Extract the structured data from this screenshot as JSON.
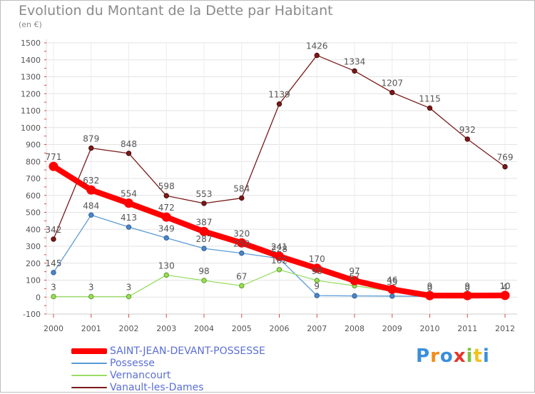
{
  "page": {
    "title": "Evolution du Montant de la Dette par Habitant",
    "subtitle": "(en €)",
    "logo": "Proxiti"
  },
  "chart_data": {
    "type": "line",
    "title": "Evolution du Montant de la Dette par Habitant",
    "ylabel": "(en €)",
    "xlabel": "",
    "x": [
      2000,
      2001,
      2002,
      2003,
      2004,
      2005,
      2006,
      2007,
      2008,
      2009,
      2010,
      2011,
      2012
    ],
    "ylim": [
      -100,
      1500
    ],
    "yticks": [
      -100,
      0,
      100,
      200,
      300,
      400,
      500,
      600,
      700,
      800,
      900,
      1000,
      1100,
      1200,
      1300,
      1400,
      1500
    ],
    "grid": true,
    "legend_position": "bottom-left",
    "series": [
      {
        "name": "SAINT-JEAN-DEVANT-POSSESSE",
        "color": "#ff0000",
        "values": [
          771,
          632,
          554,
          472,
          387,
          320,
          241,
          170,
          97,
          46,
          9,
          9,
          10
        ],
        "labels": [
          "771",
          "632",
          "554",
          "472",
          "387",
          "320",
          "241",
          "170",
          "97",
          "46",
          "9",
          "9",
          "10"
        ]
      },
      {
        "name": "Possesse",
        "color": "#5b9bd5",
        "values": [
          145,
          484,
          413,
          349,
          287,
          259,
          228,
          9,
          7,
          6,
          4,
          4,
          4
        ],
        "labels": [
          "145",
          "484",
          "413",
          "349",
          "287",
          "259",
          "228",
          "9",
          "",
          "",
          "",
          "",
          ""
        ]
      },
      {
        "name": "Vernancourt",
        "color": "#99dd66",
        "values": [
          3,
          3,
          3,
          130,
          98,
          67,
          162,
          98,
          67,
          35,
          0,
          0,
          4
        ],
        "labels": [
          "3",
          "3",
          "3",
          "130",
          "98",
          "67",
          "162",
          "98",
          "67",
          "35",
          "0",
          "0",
          "4"
        ]
      },
      {
        "name": "Vanault-les-Dames",
        "color": "#7a1a1a",
        "values": [
          342,
          879,
          848,
          598,
          553,
          584,
          1139,
          1426,
          1334,
          1207,
          1115,
          932,
          769
        ],
        "labels": [
          "342",
          "879",
          "848",
          "598",
          "553",
          "584",
          "1139",
          "1426",
          "1334",
          "1207",
          "1115",
          "932",
          "769"
        ]
      }
    ]
  }
}
